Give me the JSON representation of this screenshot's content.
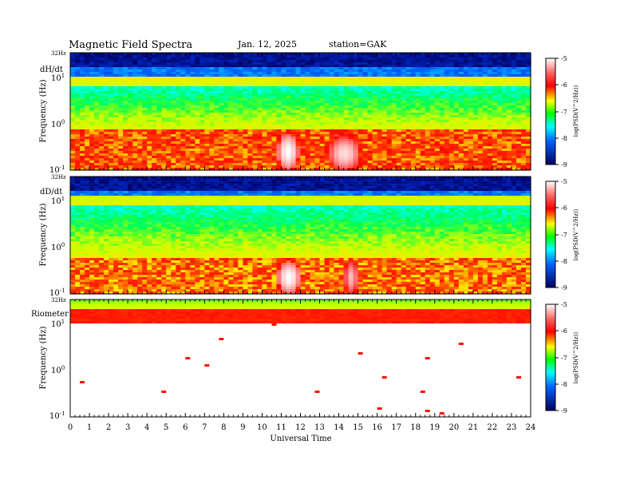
{
  "header": {
    "title": "Magnetic  Field  Spectra",
    "date": "Jan. 12, 2025",
    "station": "station=GAK"
  },
  "chart_data": [
    {
      "type": "heatmap",
      "panel_label": "dH/dt",
      "ylabel": "Frequency  (Hz)",
      "y_scale": "log",
      "y_top_label": "32Hz",
      "y_ticks": [
        "10",
        "10",
        "10"
      ],
      "y_tick_exponents": [
        "1",
        "0",
        "-1"
      ],
      "xlim": [
        0,
        24
      ],
      "ylim": [
        0.1,
        32
      ],
      "colorbar": {
        "ticks": [
          "-5",
          "-6",
          "-7",
          "-8",
          "-9"
        ],
        "label": "log(PSD(V^2/Hz))",
        "range": [
          -9,
          -5
        ]
      },
      "features": [
        {
          "name": "lower band",
          "freq_range": [
            0.1,
            0.7
          ],
          "value": -6.2
        },
        {
          "name": "bright patch",
          "time_range": [
            10.8,
            11.9
          ],
          "freq_range": [
            0.1,
            0.6
          ],
          "value": -5
        },
        {
          "name": "bright patch",
          "time_range": [
            13.5,
            15.1
          ],
          "freq_range": [
            0.1,
            0.5
          ],
          "value": -5.1
        },
        {
          "name": "band",
          "freq": 8,
          "value": -6.8
        },
        {
          "name": "top",
          "freq_range": [
            15,
            32
          ],
          "value": -8.8
        }
      ]
    },
    {
      "type": "heatmap",
      "panel_label": "dD/dt",
      "ylabel": "Frequency  (Hz)",
      "y_scale": "log",
      "y_top_label": "32Hz",
      "y_ticks": [
        "10",
        "10",
        "10"
      ],
      "y_tick_exponents": [
        "1",
        "0",
        "-1"
      ],
      "xlim": [
        0,
        24
      ],
      "ylim": [
        0.1,
        32
      ],
      "colorbar": {
        "ticks": [
          "-5",
          "-6",
          "-7",
          "-8",
          "-9"
        ],
        "label": "log(PSD(V^2/Hz))",
        "range": [
          -9,
          -5
        ]
      },
      "features": [
        {
          "name": "lower band",
          "freq_range": [
            0.1,
            0.6
          ],
          "value": -6.3
        },
        {
          "name": "bright patch",
          "time_range": [
            10.8,
            12.0
          ],
          "freq_range": [
            0.1,
            0.5
          ],
          "value": -5
        },
        {
          "name": "bright patch",
          "time_range": [
            14.3,
            15.0
          ],
          "freq_range": [
            0.1,
            0.5
          ],
          "value": -5.2
        },
        {
          "name": "band",
          "freq": 10,
          "value": -6.9
        },
        {
          "name": "top",
          "freq_range": [
            15,
            32
          ],
          "value": -8.8
        }
      ]
    },
    {
      "type": "heatmap",
      "panel_label": "Riometer",
      "ylabel": "Frequency  (Hz)",
      "y_scale": "log",
      "y_top_label": "32Hz",
      "y_ticks": [
        "10",
        "10",
        "10"
      ],
      "y_tick_exponents": [
        "1",
        "0",
        "-1"
      ],
      "xlim": [
        0,
        24
      ],
      "ylim": [
        0.1,
        32
      ],
      "colorbar": {
        "ticks": [
          "-5",
          "-6",
          "-7",
          "-8",
          "-9"
        ],
        "label": "log(PSD(V^2/Hz))",
        "range": [
          -9,
          -5
        ]
      },
      "features": [
        {
          "name": "top",
          "freq_range": [
            20,
            32
          ],
          "value": -6.8
        },
        {
          "name": "band",
          "freq_range": [
            10,
            20
          ],
          "value": -6.0
        },
        {
          "name": "below",
          "freq_range": [
            0.1,
            10
          ],
          "value": -5.0
        }
      ]
    }
  ],
  "x_axis": {
    "label": "Universal Time",
    "ticks": [
      "0",
      "1",
      "2",
      "3",
      "4",
      "5",
      "6",
      "7",
      "8",
      "9",
      "10",
      "11",
      "12",
      "13",
      "14",
      "15",
      "16",
      "17",
      "18",
      "19",
      "20",
      "21",
      "22",
      "23",
      "24"
    ]
  }
}
